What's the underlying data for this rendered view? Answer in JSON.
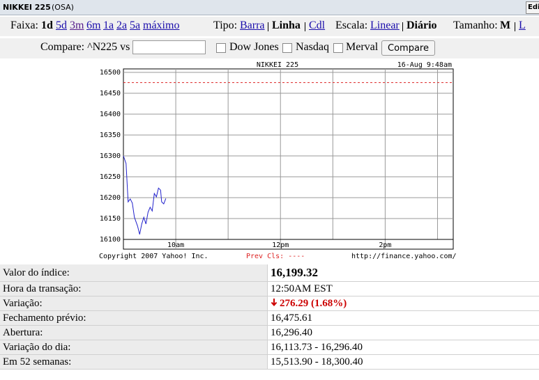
{
  "header": {
    "title": "NIKKEI 225",
    "exchange": "(OSA)",
    "edit": "Edi"
  },
  "range": {
    "label": "Faixa:",
    "options": [
      "1d",
      "5d",
      "3m",
      "6m",
      "1a",
      "2a",
      "5a",
      "máximo"
    ]
  },
  "type": {
    "label": "Tipo:",
    "options": [
      "Barra",
      "Linha",
      "Cdl"
    ]
  },
  "scale": {
    "label": "Escala:",
    "options": [
      "Linear",
      "Diário"
    ]
  },
  "size": {
    "label": "Tamanho:",
    "options": [
      "M",
      "L"
    ]
  },
  "compare": {
    "label": "Compare: ^N225 vs",
    "checkboxes": [
      "Dow Jones",
      "Nasdaq",
      "Merval"
    ],
    "button": "Compare"
  },
  "chart": {
    "type": "line",
    "title": "NIKKEI 225",
    "timestamp": "16-Aug 9:48am",
    "copyright": "Copyright 2007 Yahoo! Inc.",
    "prev_label": "Prev Cls: ----",
    "url": "http://finance.yahoo.com/",
    "color": "#2222cc",
    "prev_color": "#dd2222",
    "prev_close": 16475.61,
    "x": [
      9.0,
      9.05,
      9.09,
      9.13,
      9.17,
      9.21,
      9.27,
      9.31,
      9.35,
      9.39,
      9.43,
      9.47,
      9.51,
      9.55,
      9.59,
      9.63,
      9.67,
      9.71,
      9.73,
      9.77,
      9.81
    ],
    "values": [
      16300,
      16282,
      16190,
      16197,
      16187,
      16153,
      16132,
      16112,
      16137,
      16153,
      16137,
      16165,
      16177,
      16168,
      16210,
      16202,
      16223,
      16218,
      16190,
      16185,
      16198
    ],
    "xlim": [
      9,
      15.3
    ],
    "xticks": [
      {
        "value": 10,
        "label": "10am"
      },
      {
        "value": 11,
        "label": null
      },
      {
        "value": 12,
        "label": "12pm"
      },
      {
        "value": 13,
        "label": null
      },
      {
        "value": 14,
        "label": "2pm"
      },
      {
        "value": 15,
        "label": null
      }
    ],
    "ylim": [
      16100,
      16500
    ],
    "yticks": [
      16100,
      16150,
      16200,
      16250,
      16300,
      16350,
      16400,
      16450,
      16500
    ],
    "grid": true
  },
  "table": {
    "rows": [
      [
        "Valor do índice:",
        "16,199.32"
      ],
      [
        "Hora da transação:",
        "12:50AM EST"
      ],
      [
        "Variação:",
        "276.29 (1.68%)"
      ],
      [
        "Fechamento prévio:",
        "16,475.61"
      ],
      [
        "Abertura:",
        "16,296.40"
      ],
      [
        "Variação do dia:",
        "16,113.73 - 16,296.40"
      ],
      [
        "Em 52 semanas:",
        "15,513.90 - 18,300.40"
      ]
    ]
  }
}
